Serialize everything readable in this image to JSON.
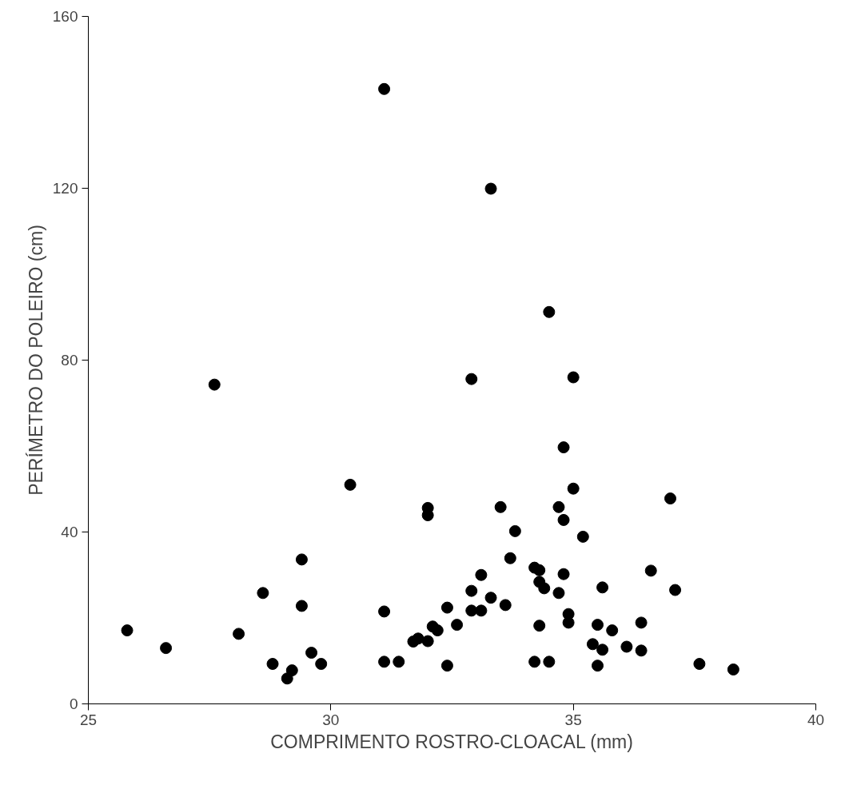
{
  "chart_data": {
    "type": "scatter",
    "xlabel": "COMPRIMENTO ROSTRO-CLOACAL (mm)",
    "ylabel": "PERÍMETRO DO POLEIRO (cm)",
    "xlim": [
      25,
      40
    ],
    "ylim": [
      0,
      160
    ],
    "xticks": [
      25,
      30,
      35,
      40
    ],
    "yticks": [
      0,
      40,
      80,
      120,
      160
    ],
    "grid": false,
    "marker": "circle",
    "series": [
      {
        "color": "#000000",
        "x": [
          25.8,
          26.6,
          27.6,
          28.1,
          28.6,
          28.8,
          29.4,
          29.4,
          29.2,
          29.1,
          29.6,
          29.8,
          30.4,
          31.1,
          31.1,
          31.1,
          31.4,
          31.7,
          31.8,
          32.0,
          32.0,
          32.0,
          32.1,
          32.2,
          32.4,
          32.4,
          32.6,
          32.9,
          32.9,
          32.9,
          33.1,
          33.1,
          33.3,
          33.3,
          33.5,
          33.6,
          33.7,
          33.8,
          34.2,
          34.3,
          34.2,
          34.3,
          34.3,
          34.4,
          34.5,
          34.5,
          34.7,
          34.7,
          34.8,
          34.8,
          34.8,
          34.9,
          34.9,
          35.0,
          35.0,
          35.2,
          35.4,
          35.5,
          35.5,
          35.6,
          35.6,
          35.8,
          36.1,
          36.4,
          36.4,
          36.6,
          37.0,
          37.1,
          37.6,
          38.3
        ],
        "values": [
          17.1,
          13.0,
          74.3,
          16.3,
          25.8,
          9.3,
          33.6,
          22.8,
          7.8,
          5.9,
          11.9,
          9.3,
          51.0,
          143.1,
          21.5,
          9.8,
          9.8,
          14.5,
          15.2,
          14.6,
          45.6,
          43.9,
          18.0,
          17.1,
          22.4,
          8.9,
          18.4,
          26.3,
          21.7,
          75.6,
          21.7,
          30.0,
          119.9,
          24.7,
          45.8,
          23.0,
          33.9,
          40.2,
          31.7,
          31.1,
          9.8,
          18.2,
          28.4,
          26.9,
          9.8,
          91.2,
          25.8,
          45.8,
          30.2,
          59.7,
          42.8,
          20.9,
          18.9,
          76.0,
          50.1,
          38.9,
          13.9,
          18.4,
          8.9,
          12.6,
          27.1,
          17.1,
          13.3,
          18.9,
          12.4,
          31.0,
          47.8,
          26.5,
          9.3,
          8.0
        ]
      }
    ]
  }
}
